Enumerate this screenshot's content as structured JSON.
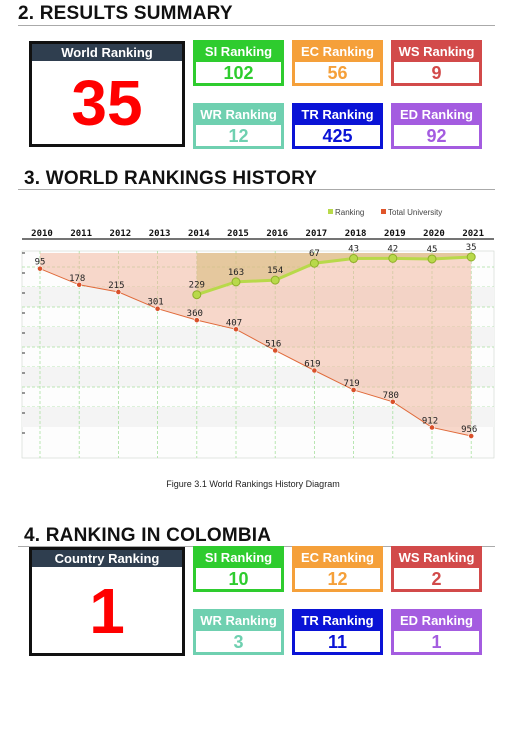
{
  "sections": {
    "results": {
      "title": "2. RESULTS SUMMARY",
      "main": {
        "label": "World Ranking",
        "value": "35"
      },
      "cards": [
        {
          "label": "SI Ranking",
          "value": "102",
          "color": "#2ecc2e"
        },
        {
          "label": "EC Ranking",
          "value": "56",
          "color": "#f5a03a"
        },
        {
          "label": "WS Ranking",
          "value": "9",
          "color": "#d24a4a"
        },
        {
          "label": "WR Ranking",
          "value": "12",
          "color": "#6fd0b0"
        },
        {
          "label": "TR Ranking",
          "value": "425",
          "color": "#0a13d6"
        },
        {
          "label": "ED Ranking",
          "value": "92",
          "color": "#a45ce0"
        }
      ]
    },
    "history": {
      "title": "3. WORLD RANKINGS HISTORY",
      "caption": "Figure 3.1 World Rankings History Diagram"
    },
    "colombia": {
      "title": "4. RANKING IN COLOMBIA",
      "main": {
        "label": "Country Ranking",
        "value": "1"
      },
      "cards": [
        {
          "label": "SI Ranking",
          "value": "10",
          "color": "#2ecc2e"
        },
        {
          "label": "EC Ranking",
          "value": "12",
          "color": "#f5a03a"
        },
        {
          "label": "WS Ranking",
          "value": "2",
          "color": "#d24a4a"
        },
        {
          "label": "WR Ranking",
          "value": "3",
          "color": "#6fd0b0"
        },
        {
          "label": "TR Ranking",
          "value": "11",
          "color": "#0a13d6"
        },
        {
          "label": "ED Ranking",
          "value": "1",
          "color": "#a45ce0"
        }
      ]
    }
  },
  "chart_data": {
    "type": "line",
    "x": [
      "2010",
      "2011",
      "2012",
      "2013",
      "2014",
      "2015",
      "2016",
      "2017",
      "2018",
      "2019",
      "2020",
      "2021"
    ],
    "y_reversed": true,
    "grid": true,
    "legend_position": "top-right",
    "series": [
      {
        "name": "Ranking",
        "color": "#b8d94a",
        "values": [
          null,
          null,
          null,
          null,
          229,
          163,
          154,
          67,
          43,
          42,
          45,
          35
        ]
      },
      {
        "name": "Total University",
        "color": "#e0552a",
        "values": [
          95,
          178,
          215,
          301,
          360,
          407,
          516,
          619,
          719,
          780,
          912,
          956
        ]
      }
    ]
  }
}
